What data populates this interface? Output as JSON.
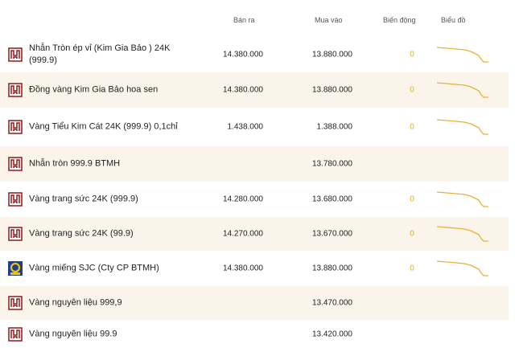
{
  "header": {
    "sell": "Bán ra",
    "buy": "Mua vào",
    "change": "Biến động",
    "chart": "Biểu đồ"
  },
  "rows": [
    {
      "name": "Nhẫn Tròn ép vỉ (Kim Gia Bảo ) 24K (999.9)",
      "sell": "14.380.000",
      "buy": "13.880.000",
      "change": 0
    },
    {
      "name": "Đồng vàng Kim Gia Bảo hoa sen",
      "sell": "14.380.000",
      "buy": "13.880.000",
      "change": 0
    },
    {
      "name": "Vàng Tiểu Kim Cát 24K (999.9) 0,1chỉ",
      "sell": "1.438.000",
      "buy": "1.388.000",
      "change": 0
    },
    {
      "name": "Nhẫn tròn 999.9 BTMH",
      "buy": "13.780.000"
    },
    {
      "name": "Vàng trang sức 24K (999.9)",
      "sell": "14.280.000",
      "buy": "13.680.000",
      "change": 0
    },
    {
      "name": "Vàng trang sức 24K (99.9)",
      "sell": "14.270.000",
      "buy": "13.670.000",
      "change": 0
    },
    {
      "name": "Vàng miếng SJC (Cty CP BTMH)",
      "sell": "14.380.000",
      "buy": "13.880.000",
      "change": 0
    },
    {
      "name": "Vàng nguyên liệu 999,9",
      "buy": "13.470.000"
    },
    {
      "name": "Vàng nguyên liệu 99.9",
      "buy": "13.420.000"
    }
  ]
}
